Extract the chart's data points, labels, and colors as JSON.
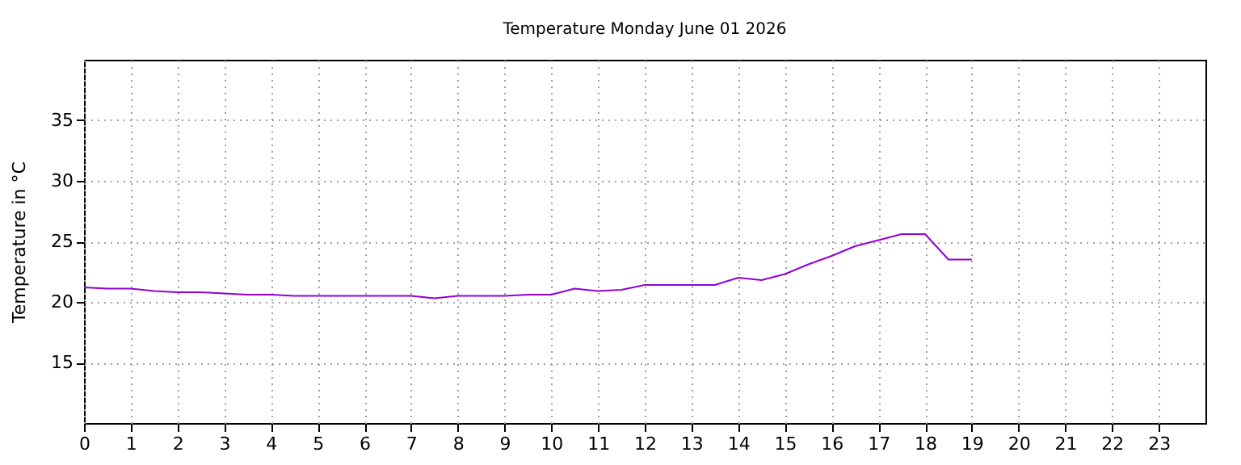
{
  "chart_data": {
    "type": "line",
    "title": "Temperature Monday June 01 2026",
    "ylabel": "Temperature in °C",
    "x": [
      0,
      0.5,
      1,
      1.5,
      2,
      2.5,
      3,
      3.5,
      4,
      4.5,
      5,
      5.5,
      6,
      6.5,
      7,
      7.5,
      8,
      8.5,
      9,
      9.5,
      10,
      10.5,
      11,
      11.5,
      12,
      12.5,
      13,
      13.5,
      14,
      14.5,
      15,
      15.5,
      16,
      16.5,
      17,
      17.5,
      18,
      18.5,
      19
    ],
    "series": [
      {
        "color": "#9400d3",
        "values": [
          21.2,
          21.1,
          21.1,
          20.9,
          20.8,
          20.8,
          20.7,
          20.6,
          20.6,
          20.5,
          20.5,
          20.5,
          20.5,
          20.5,
          20.5,
          20.3,
          20.5,
          20.5,
          20.5,
          20.6,
          20.6,
          21.1,
          20.9,
          21.0,
          21.4,
          21.4,
          21.4,
          21.4,
          22.0,
          21.8,
          22.3,
          23.1,
          23.8,
          24.6,
          25.1,
          25.6,
          25.6,
          23.5,
          23.5
        ]
      }
    ],
    "xlim": [
      0,
      24
    ],
    "xticks": [
      0,
      1,
      2,
      3,
      4,
      5,
      6,
      7,
      8,
      9,
      10,
      11,
      12,
      13,
      14,
      15,
      16,
      17,
      18,
      19,
      20,
      21,
      22,
      23
    ],
    "ylim": [
      10,
      40
    ],
    "yticks": [
      15,
      20,
      25,
      30,
      35
    ],
    "grid": true,
    "marker": "none",
    "line_style": "solid"
  }
}
